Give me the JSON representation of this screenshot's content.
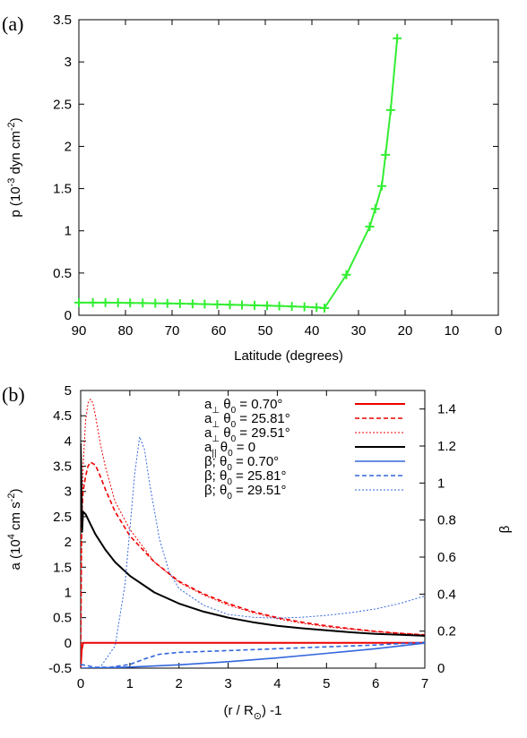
{
  "chart_data": [
    {
      "type": "line",
      "panel_label": "(a)",
      "xlabel": "Latitude (degrees)",
      "ylabel_main": "p (10",
      "ylabel_exp1": "-3",
      "ylabel_mid": " dyn cm",
      "ylabel_exp2": "-2",
      "ylabel_end": ")",
      "xlim": [
        90,
        0
      ],
      "ylim": [
        0,
        3.5
      ],
      "x_ticks": [
        "90",
        "80",
        "70",
        "60",
        "50",
        "40",
        "30",
        "20",
        "10",
        "0"
      ],
      "y_ticks": [
        "0",
        "0.5",
        "1",
        "1.5",
        "2",
        "2.5",
        "3",
        "3.5"
      ],
      "series": [
        {
          "color": "#33ee33",
          "marker": "plus",
          "x": [
            90,
            87,
            84.3,
            81.6,
            79,
            76.3,
            73.6,
            71,
            68.3,
            65.6,
            63,
            60.3,
            57.6,
            55,
            52.3,
            49.6,
            47,
            44.3,
            41.6,
            39,
            37.3,
            32.6,
            27.6,
            26.4,
            25,
            24.2,
            23.1,
            21.7
          ],
          "y": [
            0.15,
            0.15,
            0.15,
            0.148,
            0.146,
            0.144,
            0.142,
            0.14,
            0.138,
            0.135,
            0.132,
            0.128,
            0.125,
            0.122,
            0.118,
            0.114,
            0.11,
            0.105,
            0.1,
            0.093,
            0.085,
            0.48,
            1.05,
            1.26,
            1.53,
            1.9,
            2.43,
            3.28
          ]
        }
      ]
    },
    {
      "type": "line",
      "panel_label": "(b)",
      "xlabel_pre": "(r / R",
      "xlabel_sub": "⊙",
      "xlabel_post": ") -1",
      "ylabel_main": "a (10",
      "ylabel_exp1": "4",
      "ylabel_mid": " cm s",
      "ylabel_exp2": "-2",
      "ylabel_end": ")",
      "y2label": "β",
      "xlim": [
        0,
        7
      ],
      "ylim": [
        -0.5,
        5
      ],
      "y2lim": [
        0,
        1.5
      ],
      "x_ticks": [
        "0",
        "1",
        "2",
        "3",
        "4",
        "5",
        "6",
        "7"
      ],
      "y_ticks": [
        "-0.5",
        "0",
        "0.5",
        "1",
        "1.5",
        "2",
        "2.5",
        "3",
        "3.5",
        "4",
        "4.5",
        "5"
      ],
      "y2_ticks": [
        "0",
        "0.2",
        "0.4",
        "0.6",
        "0.8",
        "1",
        "1.2",
        "1.4"
      ],
      "legend_position": "top-right",
      "series": [
        {
          "legend": {
            "pre": "a",
            "sub": "⊥",
            "mid": "  θ",
            "sub2": "0",
            "post": " =   0.70°"
          },
          "color": "#ee0000",
          "dash": "solid",
          "width": 2,
          "axis": "left",
          "x": [
            0,
            0.02,
            0.05,
            0.1,
            0.3,
            1,
            2,
            3,
            4,
            5,
            6,
            7
          ],
          "y": [
            -0.5,
            -0.15,
            0.0,
            0.0,
            0.0,
            0.0,
            0.0,
            0.0,
            0.0,
            0.0,
            0.0,
            0.0
          ]
        },
        {
          "legend": {
            "pre": "a",
            "sub": "⊥",
            "mid": "  θ",
            "sub2": "0",
            "post": " =  25.81°"
          },
          "color": "#ee0000",
          "dash": "dashed",
          "width": 1.6,
          "axis": "left",
          "x": [
            0,
            0.02,
            0.05,
            0.1,
            0.15,
            0.2,
            0.3,
            0.4,
            0.5,
            0.7,
            1,
            1.5,
            2,
            2.5,
            3,
            3.5,
            4,
            4.5,
            5,
            5.5,
            6,
            6.5,
            7
          ],
          "y": [
            -0.5,
            2.5,
            3.0,
            3.3,
            3.5,
            3.58,
            3.52,
            3.3,
            3.05,
            2.6,
            2.12,
            1.6,
            1.22,
            0.97,
            0.78,
            0.62,
            0.5,
            0.41,
            0.34,
            0.28,
            0.23,
            0.19,
            0.16
          ]
        },
        {
          "legend": {
            "pre": "a",
            "sub": "⊥",
            "mid": "  θ",
            "sub2": "0",
            "post": " = 29.51°"
          },
          "color": "#ee0000",
          "dash": "dotted",
          "width": 1,
          "axis": "left",
          "x": [
            0,
            0.02,
            0.05,
            0.1,
            0.15,
            0.2,
            0.25,
            0.3,
            0.4,
            0.5,
            0.7,
            1,
            1.5,
            2,
            2.5,
            3,
            3.5,
            4,
            4.5,
            5,
            5.5,
            6,
            6.5,
            7
          ],
          "y": [
            -0.5,
            2.0,
            3.5,
            4.4,
            4.75,
            4.83,
            4.75,
            4.5,
            3.95,
            3.5,
            2.8,
            2.25,
            1.6,
            1.2,
            0.95,
            0.75,
            0.6,
            0.48,
            0.39,
            0.32,
            0.27,
            0.22,
            0.19,
            0.16
          ]
        },
        {
          "legend": {
            "pre": "a",
            "sub": "||",
            "mid": "  θ",
            "sub2": "0",
            "post": " = 0"
          },
          "color": "#000000",
          "dash": "solid",
          "width": 2,
          "axis": "left",
          "x": [
            0,
            0.01,
            0.03,
            0.05,
            0.1,
            0.2,
            0.3,
            0.5,
            0.7,
            1,
            1.5,
            2,
            2.5,
            3,
            3.5,
            4,
            4.5,
            5,
            5.5,
            6,
            6.5,
            7
          ],
          "y": [
            3.95,
            3.5,
            2.2,
            2.6,
            2.55,
            2.35,
            2.15,
            1.85,
            1.6,
            1.33,
            1.0,
            0.78,
            0.62,
            0.5,
            0.41,
            0.34,
            0.29,
            0.25,
            0.21,
            0.18,
            0.16,
            0.14
          ]
        },
        {
          "legend": {
            "pre": "β; θ",
            "sub": "0",
            "mid": " =   0.70°",
            "sub2": "",
            "post": ""
          },
          "color": "#3366dd",
          "dash": "solid",
          "width": 1.6,
          "axis": "right",
          "x": [
            0,
            0.5,
            1,
            2,
            3,
            4,
            5,
            6,
            7
          ],
          "y": [
            0,
            0.002,
            0.006,
            0.018,
            0.035,
            0.055,
            0.08,
            0.105,
            0.135
          ]
        },
        {
          "legend": {
            "pre": "β; θ",
            "sub": "0",
            "mid": " =   25.81°",
            "sub2": "",
            "post": ""
          },
          "color": "#3366dd",
          "dash": "dashed",
          "width": 1.6,
          "axis": "right",
          "x": [
            0,
            0.3,
            0.6,
            1,
            1.3,
            1.6,
            2,
            3,
            4,
            5,
            6,
            7
          ],
          "y": [
            0.02,
            0.005,
            0.005,
            0.02,
            0.05,
            0.075,
            0.085,
            0.095,
            0.105,
            0.115,
            0.125,
            0.14
          ]
        },
        {
          "legend": {
            "pre": "β; θ",
            "sub": "0",
            "mid": " =   29.51°",
            "sub2": "",
            "post": ""
          },
          "color": "#3366dd",
          "dash": "dotted",
          "width": 1,
          "axis": "right",
          "x": [
            0,
            0.4,
            0.7,
            0.9,
            1.0,
            1.1,
            1.2,
            1.3,
            1.4,
            1.6,
            1.8,
            2,
            2.5,
            3,
            3.5,
            4,
            4.5,
            5,
            5.5,
            6,
            6.5,
            7
          ],
          "y": [
            0.0,
            0.005,
            0.12,
            0.45,
            0.75,
            1.05,
            1.25,
            1.18,
            1.0,
            0.7,
            0.52,
            0.43,
            0.34,
            0.29,
            0.275,
            0.27,
            0.275,
            0.285,
            0.3,
            0.32,
            0.35,
            0.39
          ]
        }
      ]
    }
  ]
}
